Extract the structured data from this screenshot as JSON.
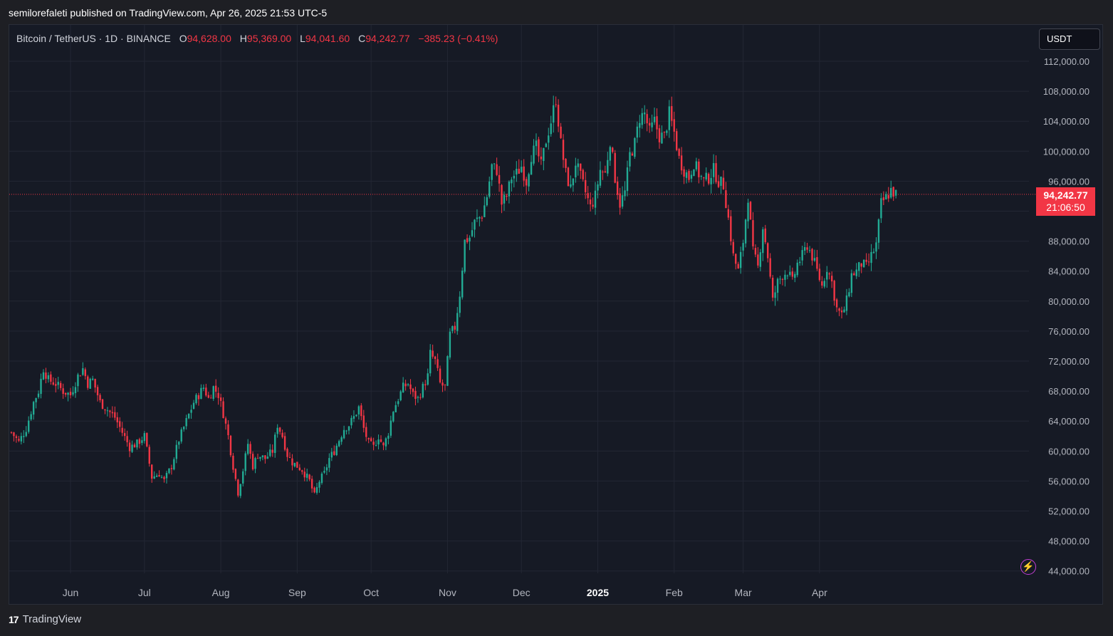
{
  "caption": "semilorefaleti published on TradingView.com, Apr 26, 2025 21:53 UTC-5",
  "legend": {
    "symbol": "Bitcoin / TetherUS · 1D · BINANCE",
    "o_label": "O",
    "o_value": "94,628.00",
    "h_label": "H",
    "h_value": "95,369.00",
    "l_label": "L",
    "l_value": "94,041.60",
    "c_label": "C",
    "c_value": "94,242.77",
    "change": "−385.23 (−0.41%)"
  },
  "currency_button": "USDT",
  "price_tag": {
    "price": "94,242.77",
    "countdown": "21:06:50"
  },
  "footer": {
    "logo_mark": "17",
    "logo_text": "TradingView"
  },
  "colors": {
    "up": "#22ab94",
    "down": "#f23645",
    "background": "#161a25",
    "grid": "#232734",
    "axis_text": "#b2b5be",
    "alert_icon": "#c53fd6"
  },
  "icons": [
    "tradingview-logo-icon",
    "lightning-alert-icon"
  ],
  "chart_data": {
    "type": "candlestick",
    "ylim": [
      42000,
      115000
    ],
    "last_price": 94242.77,
    "y_ticks": [
      112000,
      108000,
      104000,
      100000,
      96000,
      88000,
      84000,
      80000,
      76000,
      72000,
      68000,
      64000,
      60000,
      56000,
      52000,
      48000,
      44000
    ],
    "y_tick_labels": [
      "112,000.00",
      "108,000.00",
      "104,000.00",
      "100,000.00",
      "96,000.00",
      "88,000.00",
      "84,000.00",
      "80,000.00",
      "76,000.00",
      "72,000.00",
      "68,000.00",
      "64,000.00",
      "60,000.00",
      "56,000.00",
      "52,000.00",
      "48,000.00",
      "44,000.00"
    ],
    "x_ticks": [
      {
        "label": "Jun",
        "index": 24,
        "bold": false
      },
      {
        "label": "Jul",
        "index": 54,
        "bold": false
      },
      {
        "label": "Aug",
        "index": 85,
        "bold": false
      },
      {
        "label": "Sep",
        "index": 116,
        "bold": false
      },
      {
        "label": "Oct",
        "index": 146,
        "bold": false
      },
      {
        "label": "Nov",
        "index": 177,
        "bold": false
      },
      {
        "label": "Dec",
        "index": 207,
        "bold": false
      },
      {
        "label": "2025",
        "index": 238,
        "bold": true
      },
      {
        "label": "Feb",
        "index": 269,
        "bold": false
      },
      {
        "label": "Mar",
        "index": 297,
        "bold": false
      },
      {
        "label": "Apr",
        "index": 328,
        "bold": false
      }
    ],
    "candles_per_day": 1,
    "anchors": [
      [
        0,
        62500
      ],
      [
        3,
        61200
      ],
      [
        6,
        63000
      ],
      [
        9,
        66500
      ],
      [
        11,
        68000
      ],
      [
        13,
        71000
      ],
      [
        15,
        69500
      ],
      [
        18,
        69000
      ],
      [
        21,
        68000
      ],
      [
        24,
        67500
      ],
      [
        27,
        70000
      ],
      [
        29,
        71000
      ],
      [
        31,
        69000
      ],
      [
        33,
        69500
      ],
      [
        36,
        66500
      ],
      [
        39,
        65500
      ],
      [
        42,
        64500
      ],
      [
        45,
        62500
      ],
      [
        48,
        60500
      ],
      [
        51,
        61000
      ],
      [
        54,
        62000
      ],
      [
        57,
        56500
      ],
      [
        60,
        57000
      ],
      [
        62,
        56000
      ],
      [
        65,
        58000
      ],
      [
        68,
        61500
      ],
      [
        71,
        64000
      ],
      [
        74,
        66500
      ],
      [
        76,
        67500
      ],
      [
        78,
        68500
      ],
      [
        80,
        67000
      ],
      [
        82,
        68500
      ],
      [
        84,
        67500
      ],
      [
        86,
        65000
      ],
      [
        88,
        62000
      ],
      [
        90,
        58000
      ],
      [
        92,
        54500
      ],
      [
        94,
        57500
      ],
      [
        96,
        61000
      ],
      [
        98,
        58000
      ],
      [
        100,
        59500
      ],
      [
        103,
        59000
      ],
      [
        106,
        60000
      ],
      [
        108,
        63500
      ],
      [
        110,
        62000
      ],
      [
        112,
        59500
      ],
      [
        114,
        58500
      ],
      [
        116,
        58000
      ],
      [
        118,
        57500
      ],
      [
        121,
        56000
      ],
      [
        123,
        54000
      ],
      [
        125,
        56000
      ],
      [
        127,
        57000
      ],
      [
        129,
        59000
      ],
      [
        131,
        60000
      ],
      [
        133,
        61500
      ],
      [
        135,
        63000
      ],
      [
        137,
        63500
      ],
      [
        139,
        64500
      ],
      [
        141,
        65800
      ],
      [
        143,
        63000
      ],
      [
        145,
        61000
      ],
      [
        147,
        60500
      ],
      [
        149,
        62000
      ],
      [
        151,
        60500
      ],
      [
        153,
        62500
      ],
      [
        155,
        65500
      ],
      [
        157,
        67000
      ],
      [
        159,
        68500
      ],
      [
        161,
        69000
      ],
      [
        163,
        67500
      ],
      [
        165,
        67000
      ],
      [
        167,
        68500
      ],
      [
        169,
        70000
      ],
      [
        170,
        73000
      ],
      [
        172,
        72000
      ],
      [
        174,
        69000
      ],
      [
        176,
        68500
      ],
      [
        178,
        75500
      ],
      [
        180,
        76500
      ],
      [
        182,
        81000
      ],
      [
        184,
        88000
      ],
      [
        186,
        88500
      ],
      [
        188,
        90500
      ],
      [
        191,
        91500
      ],
      [
        193,
        94000
      ],
      [
        195,
        98000
      ],
      [
        197,
        97500
      ],
      [
        199,
        93000
      ],
      [
        201,
        94000
      ],
      [
        203,
        96500
      ],
      [
        205,
        97000
      ],
      [
        207,
        98000
      ],
      [
        209,
        96000
      ],
      [
        211,
        99500
      ],
      [
        213,
        100500
      ],
      [
        215,
        98000
      ],
      [
        217,
        101500
      ],
      [
        219,
        104000
      ],
      [
        221,
        107000
      ],
      [
        223,
        101000
      ],
      [
        225,
        97000
      ],
      [
        227,
        95000
      ],
      [
        229,
        98500
      ],
      [
        231,
        96500
      ],
      [
        233,
        94500
      ],
      [
        235,
        92500
      ],
      [
        237,
        94000
      ],
      [
        239,
        97500
      ],
      [
        241,
        97000
      ],
      [
        243,
        101500
      ],
      [
        245,
        96500
      ],
      [
        247,
        93000
      ],
      [
        249,
        94500
      ],
      [
        251,
        99500
      ],
      [
        253,
        101000
      ],
      [
        255,
        104500
      ],
      [
        257,
        105000
      ],
      [
        259,
        102500
      ],
      [
        261,
        104000
      ],
      [
        263,
        102000
      ],
      [
        265,
        102000
      ],
      [
        267,
        105000
      ],
      [
        269,
        102500
      ],
      [
        271,
        99000
      ],
      [
        273,
        97500
      ],
      [
        275,
        96500
      ],
      [
        277,
        98500
      ],
      [
        279,
        97000
      ],
      [
        281,
        96000
      ],
      [
        283,
        96500
      ],
      [
        285,
        97500
      ],
      [
        287,
        96000
      ],
      [
        289,
        95500
      ],
      [
        291,
        91000
      ],
      [
        293,
        86000
      ],
      [
        295,
        84000
      ],
      [
        297,
        88000
      ],
      [
        299,
        94000
      ],
      [
        301,
        86500
      ],
      [
        303,
        84500
      ],
      [
        305,
        90000
      ],
      [
        307,
        86000
      ],
      [
        309,
        80000
      ],
      [
        311,
        82500
      ],
      [
        313,
        83500
      ],
      [
        315,
        84000
      ],
      [
        317,
        82500
      ],
      [
        319,
        85000
      ],
      [
        321,
        86000
      ],
      [
        323,
        87500
      ],
      [
        325,
        86000
      ],
      [
        327,
        84000
      ],
      [
        329,
        82000
      ],
      [
        331,
        84500
      ],
      [
        333,
        82500
      ],
      [
        335,
        79000
      ],
      [
        337,
        78000
      ],
      [
        339,
        80000
      ],
      [
        341,
        83500
      ],
      [
        343,
        84000
      ],
      [
        345,
        85000
      ],
      [
        347,
        84500
      ],
      [
        349,
        86000
      ],
      [
        351,
        87500
      ],
      [
        353,
        93000
      ],
      [
        355,
        93800
      ],
      [
        357,
        94800
      ],
      [
        359,
        94242
      ]
    ]
  }
}
